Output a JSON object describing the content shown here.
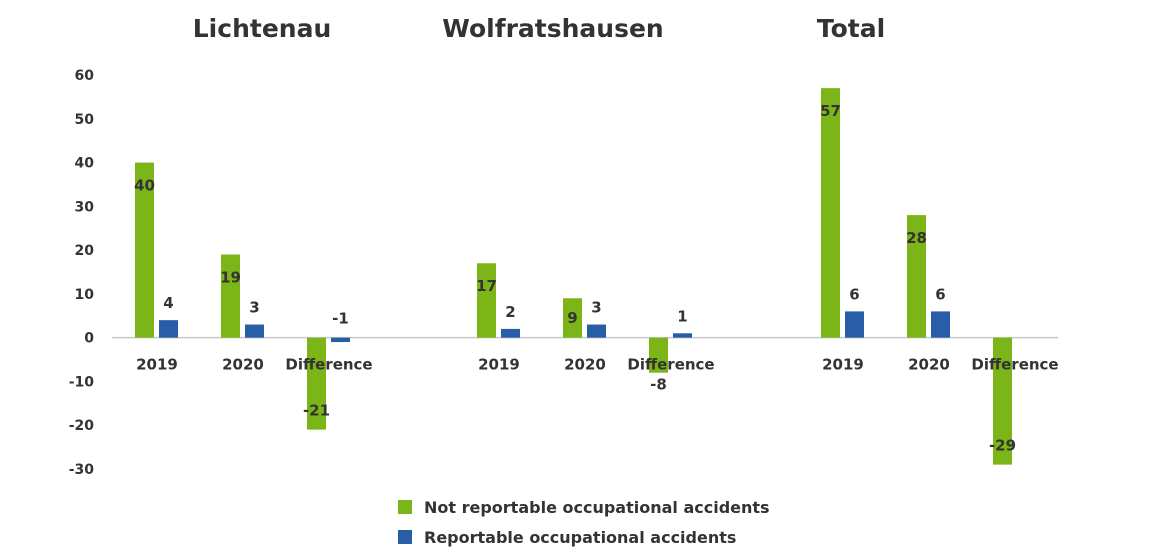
{
  "chart_data": {
    "type": "bar",
    "panels": [
      {
        "title": "Lichtenau",
        "categories": [
          "2019",
          "2020",
          "Difference"
        ],
        "series": [
          {
            "name": "Not reportable occupational accidents",
            "values": [
              40,
              19,
              -21
            ]
          },
          {
            "name": "Reportable occupational accidents",
            "values": [
              4,
              3,
              -1
            ]
          }
        ]
      },
      {
        "title": "Wolfratshausen",
        "categories": [
          "2019",
          "2020",
          "Difference"
        ],
        "series": [
          {
            "name": "Not reportable occupational accidents",
            "values": [
              17,
              9,
              -8
            ]
          },
          {
            "name": "Reportable occupational accidents",
            "values": [
              2,
              3,
              1
            ]
          }
        ]
      },
      {
        "title": "Total",
        "categories": [
          "2019",
          "2020",
          "Difference"
        ],
        "series": [
          {
            "name": "Not reportable occupational accidents",
            "values": [
              57,
              28,
              -29
            ]
          },
          {
            "name": "Reportable occupational accidents",
            "values": [
              6,
              6,
              null
            ]
          }
        ]
      }
    ],
    "ylim": [
      -30,
      60
    ],
    "yticks": [
      60,
      50,
      40,
      30,
      20,
      10,
      0,
      -10,
      -20,
      -30
    ],
    "grid": false,
    "legend_position": "bottom",
    "colors": {
      "not_reportable": "#7CB518",
      "reportable": "#2A5DA8"
    }
  },
  "legend": {
    "items": [
      {
        "label": "Not reportable occupational accidents",
        "color": "#7CB518"
      },
      {
        "label": "Reportable occupational accidents",
        "color": "#2A5DA8"
      }
    ]
  }
}
